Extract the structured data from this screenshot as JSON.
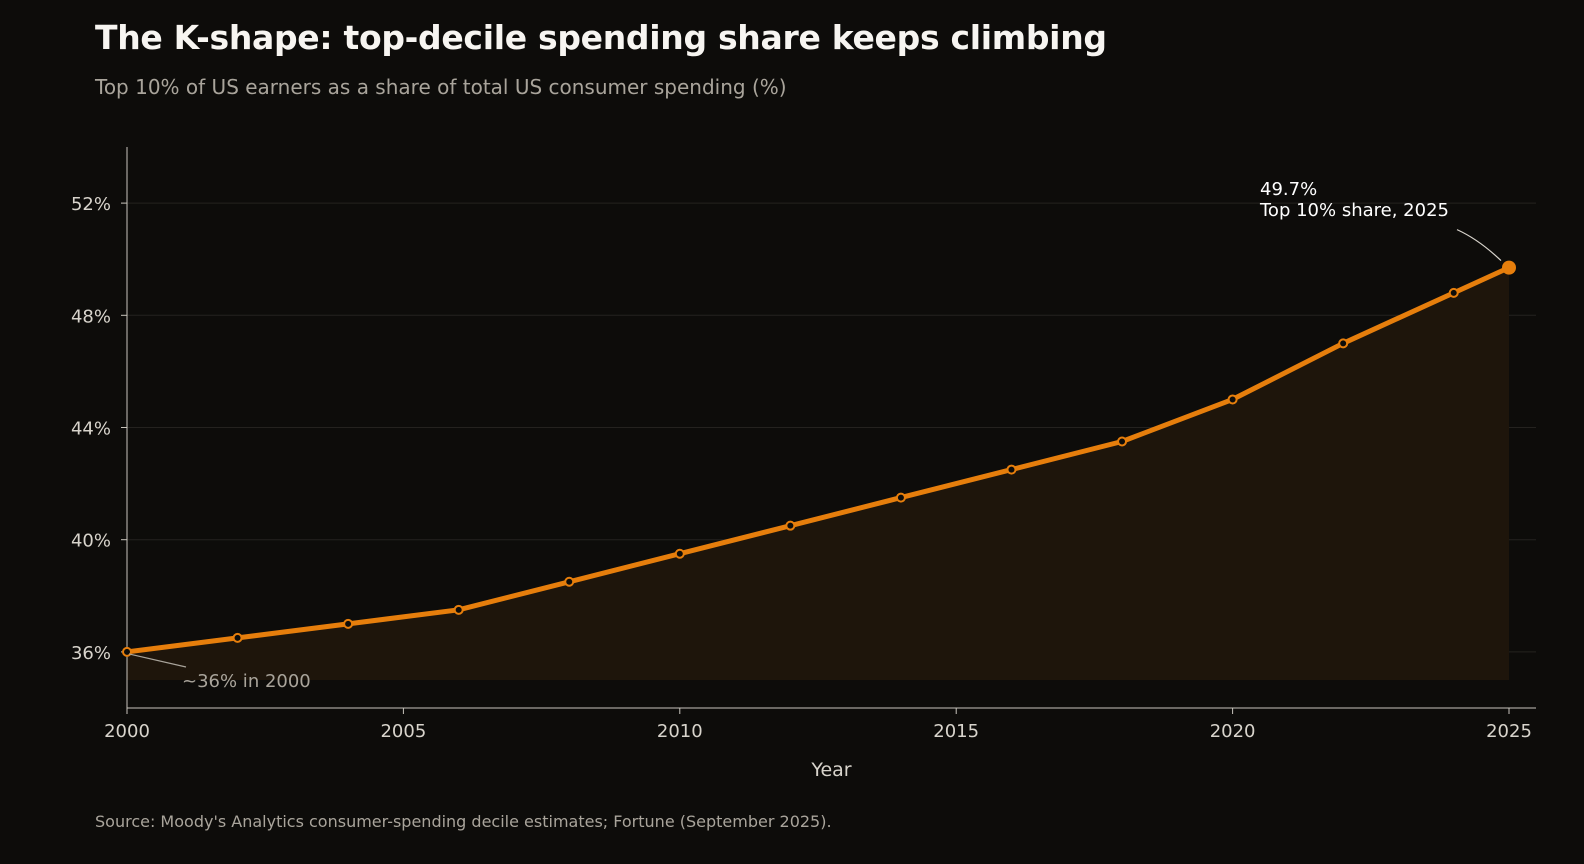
{
  "header": {
    "title": "The K-shape: top-decile spending share keeps climbing",
    "subtitle": "Top 10% of US earners as a share of total US consumer spending (%)"
  },
  "footer": {
    "source": "Source: Moody's Analytics consumer-spending decile estimates; Fortune (September 2025)."
  },
  "colors": {
    "line": "#e67e0c",
    "area": "#1e150b",
    "marker_fill": "#0d0c0a",
    "grid": "#24221f",
    "axis": "#c9c5bd"
  },
  "chart_data": {
    "type": "line",
    "xlabel": "Year",
    "ylabel": "",
    "xlim": [
      2000,
      2025
    ],
    "ylim": [
      34,
      54
    ],
    "x_ticks": [
      2000,
      2005,
      2010,
      2015,
      2020,
      2025
    ],
    "x_tick_labels": [
      "2000",
      "2005",
      "2010",
      "2015",
      "2020",
      "2025"
    ],
    "y_ticks": [
      36,
      40,
      44,
      48,
      52
    ],
    "y_tick_labels": [
      "36%",
      "40%",
      "44%",
      "48%",
      "52%"
    ],
    "area_baseline": 35,
    "grid": "horizontal",
    "series": [
      {
        "x": [
          2000,
          2002,
          2004,
          2006,
          2008,
          2010,
          2012,
          2014,
          2016,
          2018,
          2020,
          2022,
          2024,
          2025
        ],
        "y": [
          36.0,
          36.5,
          37.0,
          37.5,
          38.5,
          39.5,
          40.5,
          41.5,
          42.5,
          43.5,
          45.0,
          47.0,
          48.8,
          49.7
        ]
      }
    ],
    "annotations": [
      {
        "x": 2025,
        "y": 49.7,
        "lines": [
          "49.7%",
          "Top 10% share, 2025"
        ]
      },
      {
        "x": 2000,
        "y": 36.0,
        "lines": [
          "~36% in 2000"
        ]
      }
    ]
  }
}
